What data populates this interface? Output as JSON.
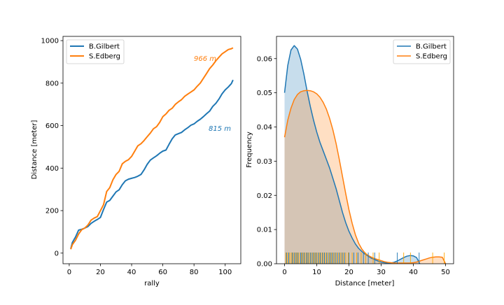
{
  "colors": {
    "gilbert": "#1f77b4",
    "edberg": "#ff7f0e",
    "rug_gilbert": "#1f77b4",
    "rug_edberg": "#ffa500"
  },
  "chart_data": [
    {
      "type": "line",
      "xlabel": "rally",
      "ylabel": "Distance [meter]",
      "xlim": [
        -4,
        110
      ],
      "ylim": [
        -50,
        1020
      ],
      "xticks": [
        0,
        20,
        40,
        60,
        80,
        100
      ],
      "yticks": [
        0,
        200,
        400,
        600,
        800,
        1000
      ],
      "legend": {
        "placement": "top-left",
        "entries": [
          "B.Gilbert",
          "S.Edberg"
        ]
      },
      "annotations": [
        {
          "text": "966 m",
          "x": 80,
          "y": 905,
          "series": "S.Edberg"
        },
        {
          "text": "815 m",
          "x": 89,
          "y": 588,
          "series": "B.Gilbert"
        }
      ],
      "series": [
        {
          "name": "B.Gilbert",
          "x": [
            1,
            2,
            4,
            6,
            8,
            10,
            12,
            14,
            16,
            18,
            20,
            22,
            24,
            26,
            28,
            30,
            32,
            34,
            36,
            38,
            40,
            42,
            44,
            46,
            48,
            50,
            52,
            54,
            56,
            58,
            60,
            62,
            64,
            66,
            68,
            70,
            72,
            74,
            76,
            78,
            80,
            82,
            84,
            86,
            88,
            90,
            92,
            94,
            96,
            98,
            100,
            102,
            104,
            105
          ],
          "y": [
            20,
            50,
            75,
            108,
            112,
            118,
            125,
            140,
            150,
            158,
            168,
            205,
            240,
            248,
            268,
            288,
            298,
            322,
            340,
            348,
            352,
            356,
            362,
            370,
            392,
            418,
            438,
            448,
            458,
            470,
            480,
            485,
            512,
            538,
            556,
            562,
            568,
            580,
            590,
            602,
            608,
            620,
            630,
            642,
            656,
            668,
            690,
            705,
            725,
            750,
            768,
            782,
            798,
            815
          ]
        },
        {
          "name": "S.Edberg",
          "x": [
            1,
            2,
            4,
            6,
            8,
            10,
            12,
            14,
            16,
            18,
            20,
            22,
            24,
            26,
            28,
            30,
            32,
            34,
            36,
            38,
            40,
            42,
            44,
            46,
            48,
            50,
            52,
            54,
            56,
            58,
            60,
            62,
            64,
            66,
            68,
            70,
            72,
            74,
            76,
            78,
            80,
            82,
            84,
            86,
            88,
            90,
            92,
            94,
            96,
            98,
            100,
            102,
            104,
            105
          ],
          "y": [
            18,
            40,
            60,
            90,
            110,
            118,
            132,
            155,
            165,
            172,
            200,
            228,
            290,
            308,
            345,
            370,
            385,
            420,
            432,
            440,
            455,
            480,
            505,
            515,
            530,
            548,
            565,
            585,
            595,
            615,
            642,
            655,
            672,
            682,
            700,
            712,
            722,
            738,
            748,
            758,
            768,
            785,
            800,
            822,
            845,
            868,
            885,
            905,
            922,
            938,
            948,
            958,
            962,
            966
          ]
        }
      ]
    },
    {
      "type": "area",
      "xlabel": "Distance [meter]",
      "ylabel": "Frequency",
      "xlim": [
        -2.5,
        52.5
      ],
      "ylim": [
        0,
        0.0665
      ],
      "xticks": [
        0,
        10,
        20,
        30,
        40,
        50
      ],
      "yticks": [
        0.0,
        0.01,
        0.02,
        0.03,
        0.04,
        0.05,
        0.06
      ],
      "ytick_labels": [
        "0.00",
        "0.01",
        "0.02",
        "0.03",
        "0.04",
        "0.05",
        "0.06"
      ],
      "legend": {
        "placement": "top-right",
        "entries": [
          "B.Gilbert",
          "S.Edberg"
        ]
      },
      "series": [
        {
          "name": "B.Gilbert",
          "x": [
            0,
            1,
            2,
            3,
            4,
            5,
            6,
            7,
            8,
            9,
            10,
            11,
            12,
            13,
            14,
            15,
            16,
            17,
            18,
            19,
            20,
            21,
            22,
            23,
            24,
            25,
            26,
            27,
            28,
            29,
            30,
            31,
            32,
            33,
            34,
            35,
            36,
            37,
            38,
            39,
            40,
            41,
            42
          ],
          "y": [
            0.05,
            0.058,
            0.0625,
            0.0638,
            0.0628,
            0.0598,
            0.0555,
            0.0505,
            0.046,
            0.042,
            0.0385,
            0.0355,
            0.033,
            0.0305,
            0.028,
            0.025,
            0.022,
            0.0185,
            0.015,
            0.012,
            0.0095,
            0.0075,
            0.0058,
            0.0045,
            0.0036,
            0.0028,
            0.0022,
            0.0016,
            0.0012,
            0.0008,
            0.0005,
            0.0003,
            0.0002,
            0.0002,
            0.0004,
            0.0008,
            0.0013,
            0.0018,
            0.0022,
            0.0024,
            0.0023,
            0.0018,
            0.0
          ]
        },
        {
          "name": "S.Edberg",
          "x": [
            0,
            1,
            2,
            3,
            4,
            5,
            6,
            7,
            8,
            9,
            10,
            11,
            12,
            13,
            14,
            15,
            16,
            17,
            18,
            19,
            20,
            21,
            22,
            23,
            24,
            25,
            26,
            27,
            28,
            29,
            30,
            31,
            32,
            33,
            34,
            35,
            36,
            37,
            38,
            39,
            40,
            41,
            42,
            43,
            44,
            45,
            46,
            47,
            48,
            49,
            50
          ],
          "y": [
            0.037,
            0.042,
            0.0455,
            0.048,
            0.0495,
            0.0503,
            0.0506,
            0.0507,
            0.0506,
            0.0503,
            0.0497,
            0.0487,
            0.0472,
            0.0452,
            0.0425,
            0.0392,
            0.0352,
            0.0305,
            0.0255,
            0.0205,
            0.0158,
            0.0118,
            0.0085,
            0.006,
            0.0043,
            0.0031,
            0.0024,
            0.0019,
            0.0015,
            0.0012,
            0.0009,
            0.0006,
            0.0004,
            0.0003,
            0.0002,
            0.0002,
            0.0002,
            0.0002,
            0.0002,
            0.0002,
            0.0003,
            0.0005,
            0.0008,
            0.0011,
            0.0014,
            0.0017,
            0.0019,
            0.002,
            0.002,
            0.0019,
            0.0
          ]
        }
      ],
      "rug": [
        {
          "name": "S.Edberg",
          "values": [
            0.4,
            0.9,
            1.6,
            2.1,
            2.7,
            3.4,
            3.9,
            4.5,
            5.2,
            5.8,
            6.4,
            7.0,
            7.6,
            8.2,
            8.9,
            9.5,
            10.1,
            10.8,
            11.4,
            12.0,
            12.7,
            13.3,
            14.0,
            14.6,
            15.3,
            16.0,
            16.8,
            17.5,
            18.2,
            19.0,
            19.8,
            21.0,
            22.4,
            23.8,
            25.2,
            27.5,
            29.4,
            37.0,
            39.1,
            46.0,
            49.6
          ]
        },
        {
          "name": "B.Gilbert",
          "values": [
            0.6,
            1.3,
            2.4,
            3.0,
            3.6,
            4.2,
            5.0,
            5.5,
            6.1,
            6.8,
            7.3,
            8.0,
            8.6,
            9.2,
            9.8,
            10.5,
            11.1,
            11.8,
            12.4,
            13.1,
            13.8,
            14.4,
            15.0,
            15.7,
            16.4,
            17.1,
            17.9,
            18.6,
            20.0,
            21.5,
            22.8,
            24.5,
            26.0,
            28.0,
            35.0,
            41.8
          ]
        }
      ]
    }
  ]
}
